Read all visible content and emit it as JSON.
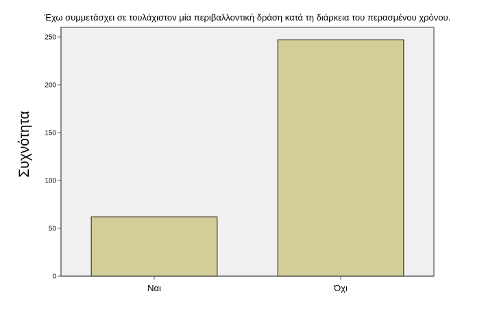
{
  "colors": {
    "plot_background": "#f0f0f0",
    "bar_fill": "#d3ce98",
    "bar_stroke": "#3a3a2a",
    "frame": "#555555"
  },
  "chart_data": {
    "type": "bar",
    "title": "Έχω συμμετάσχει σε τουλάχιστον μία περιβαλλοντική δράση κατά τη διάρκεια του περασμένου χρόνου.",
    "xlabel": "",
    "ylabel": "Συχνότητα",
    "categories": [
      "Ναι",
      "Όχι"
    ],
    "values": [
      62,
      247
    ],
    "ylim": [
      0,
      260
    ],
    "yticks": [
      0,
      50,
      100,
      150,
      200,
      250
    ],
    "grid": false,
    "legend": "none"
  }
}
